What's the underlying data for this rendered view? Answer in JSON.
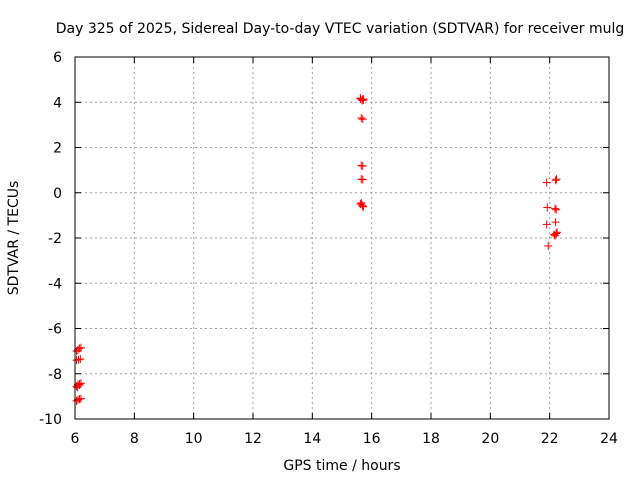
{
  "chart_data": {
    "type": "scatter",
    "title": "Day 325 of 2025, Sidereal Day-to-day VTEC variation (SDTVAR) for receiver mulg",
    "xlabel": "GPS time / hours",
    "ylabel": "SDTVAR / TECUs",
    "xlim": [
      6,
      24
    ],
    "ylim": [
      -10,
      6
    ],
    "xticks": [
      6,
      8,
      10,
      12,
      14,
      16,
      18,
      20,
      22,
      24
    ],
    "yticks": [
      -10,
      -8,
      -6,
      -4,
      -2,
      0,
      2,
      4,
      6
    ],
    "grid": true,
    "marker": "+",
    "colors": {
      "points": "#ff0000",
      "grid": "#a0a0a0",
      "axes": "#000000"
    },
    "series": [
      {
        "name": "SDTVAR",
        "x": [
          6.05,
          6.1,
          6.15,
          6.2,
          6.05,
          6.12,
          6.18,
          6.05,
          6.1,
          6.15,
          6.2,
          6.08,
          6.15,
          6.05,
          6.1,
          6.15,
          6.2,
          15.62,
          15.68,
          15.72,
          15.65,
          15.7,
          15.62,
          15.68,
          15.72,
          15.65,
          15.7,
          15.65,
          15.7,
          15.62,
          15.68,
          15.72,
          15.65,
          15.7,
          21.9,
          22.2,
          22.23,
          21.92,
          22.18,
          22.22,
          21.9,
          22.2,
          21.95,
          22.15,
          22.22,
          22.18,
          22.25
        ],
        "y": [
          -7.0,
          -6.95,
          -6.88,
          -6.85,
          -7.4,
          -7.38,
          -7.35,
          -8.55,
          -8.48,
          -8.45,
          -8.42,
          -8.6,
          -8.5,
          -9.2,
          -9.15,
          -9.12,
          -9.1,
          4.15,
          4.12,
          4.1,
          3.3,
          3.25,
          -0.5,
          -0.55,
          -0.62,
          1.2,
          1.18,
          0.6,
          0.58,
          4.18,
          4.08,
          4.14,
          -0.45,
          -0.6,
          0.45,
          0.55,
          0.6,
          -0.65,
          -0.7,
          -0.75,
          -1.4,
          -1.3,
          -2.35,
          -1.85,
          -1.8,
          -1.9,
          -1.75
        ]
      }
    ]
  }
}
